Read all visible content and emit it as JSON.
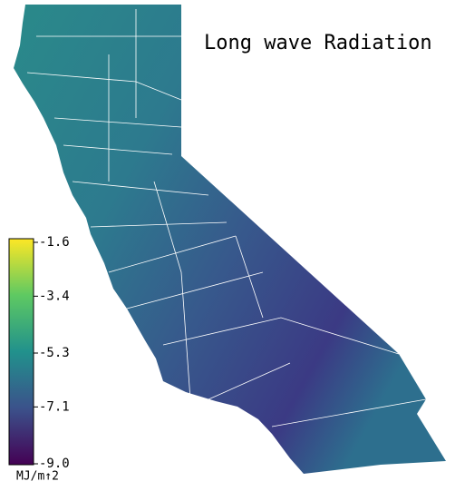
{
  "map": {
    "title": "Long wave Radiation",
    "colorbar": {
      "label": "MJ/m↑2",
      "lim": [
        -9.0,
        -1.6
      ],
      "ticks": [
        -1.6,
        -3.4,
        -5.3,
        -7.1,
        {
          "value": -9,
          "label": "-9.0"
        }
      ]
    }
  }
}
